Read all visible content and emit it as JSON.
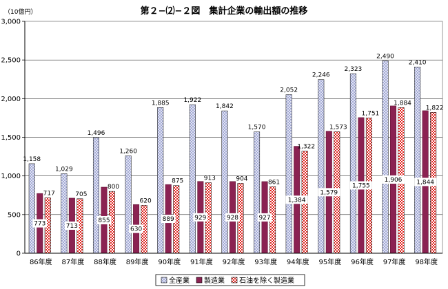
{
  "chart_data": {
    "type": "bar",
    "title": "第２−⑵−２図　集計企業の輸出額の推移",
    "unit_label": "（10億円）",
    "xlabel": "",
    "ylabel": "",
    "ylim": [
      0,
      3000
    ],
    "yticks": [
      "0",
      "500",
      "1,000",
      "1,500",
      "2,000",
      "2,500",
      "3,000"
    ],
    "ytick_values": [
      0,
      500,
      1000,
      1500,
      2000,
      2500,
      3000
    ],
    "categories": [
      "86年度",
      "87年度",
      "88年度",
      "89年度",
      "90年度",
      "91年度",
      "92年度",
      "93年度",
      "94年度",
      "95年度",
      "96年度",
      "97年度",
      "98年度"
    ],
    "series": [
      {
        "name": "全産業",
        "values": [
          1158,
          1029,
          1496,
          1260,
          1885,
          1922,
          1842,
          1570,
          2052,
          2246,
          2323,
          2490,
          2410
        ],
        "labels": [
          "1,158",
          "1,029",
          "1,496",
          "1,260",
          "1,885",
          "1,922",
          "1,842",
          "1,570",
          "2,052",
          "2,246",
          "2,323",
          "2,490",
          "2,410"
        ],
        "color": "#dde3f5",
        "pattern": "diagonal-cross"
      },
      {
        "name": "製造業",
        "values": [
          773,
          713,
          855,
          630,
          889,
          929,
          928,
          927,
          1384,
          1579,
          1755,
          1906,
          1844
        ],
        "labels": [
          "773",
          "713",
          "855",
          "630",
          "889",
          "929",
          "928",
          "927",
          "1,384",
          "1,579",
          "1,755",
          "1,906",
          "1,844"
        ],
        "color": "#8b2252",
        "pattern": "solid"
      },
      {
        "name": "石油を除く製造業",
        "values": [
          717,
          705,
          800,
          620,
          875,
          913,
          904,
          861,
          1322,
          1573,
          1751,
          1884,
          1822
        ],
        "labels": [
          "717",
          "705",
          "800",
          "620",
          "875",
          "913",
          "904",
          "861",
          "1,322",
          "1,573",
          "1,751",
          "1,884",
          "1,822"
        ],
        "color": "#e0241f",
        "pattern": "checker"
      }
    ],
    "legend_position": "bottom",
    "grid": true
  }
}
